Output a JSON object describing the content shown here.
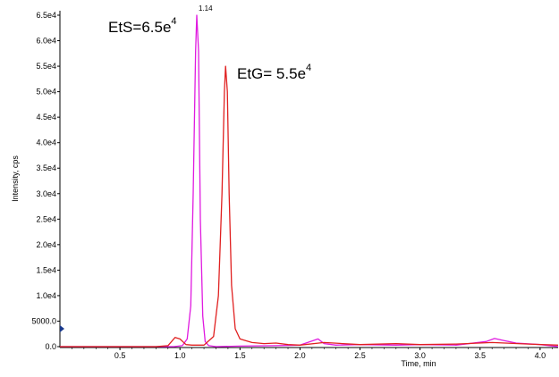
{
  "chart_data": {
    "type": "line",
    "xlabel": "Time, min",
    "ylabel": "Intensity, cps",
    "xlim": [
      0.0,
      4.15
    ],
    "ylim": [
      0,
      65000
    ],
    "x_ticks": [
      {
        "value": 0.5,
        "label": "0.5"
      },
      {
        "value": 1.0,
        "label": "1.0"
      },
      {
        "value": 1.5,
        "label": "1.5"
      },
      {
        "value": 2.0,
        "label": "2.0"
      },
      {
        "value": 2.5,
        "label": "2.5"
      },
      {
        "value": 3.0,
        "label": "3.0"
      },
      {
        "value": 3.5,
        "label": "3.5"
      },
      {
        "value": 4.0,
        "label": "4.0"
      }
    ],
    "y_ticks": [
      {
        "value": 0,
        "label": "0.0"
      },
      {
        "value": 5000,
        "label": "5000.0"
      },
      {
        "value": 10000,
        "label": "1.0e4"
      },
      {
        "value": 15000,
        "label": "1.5e4"
      },
      {
        "value": 20000,
        "label": "2.0e4"
      },
      {
        "value": 25000,
        "label": "2.5e4"
      },
      {
        "value": 30000,
        "label": "3.0e4"
      },
      {
        "value": 35000,
        "label": "3.5e4"
      },
      {
        "value": 40000,
        "label": "4.0e4"
      },
      {
        "value": 45000,
        "label": "4.5e4"
      },
      {
        "value": 50000,
        "label": "5.0e4"
      },
      {
        "value": 55000,
        "label": "5.5e4"
      },
      {
        "value": 60000,
        "label": "6.0e4"
      },
      {
        "value": 65000,
        "label": "6.5e4"
      }
    ],
    "series": [
      {
        "color": "#e01ae0",
        "x": [
          0.0,
          0.8,
          0.95,
          1.02,
          1.06,
          1.09,
          1.11,
          1.13,
          1.14,
          1.155,
          1.17,
          1.19,
          1.21,
          1.24,
          1.3,
          1.5,
          1.8,
          2.0,
          2.15,
          2.2,
          2.3,
          2.5,
          2.8,
          3.0,
          3.3,
          3.55,
          3.62,
          3.7,
          3.8,
          4.0,
          4.15
        ],
        "y": [
          0,
          0,
          0,
          200,
          1500,
          8000,
          30000,
          58000,
          65000,
          58000,
          25000,
          6000,
          1000,
          200,
          0,
          100,
          200,
          300,
          1500,
          600,
          300,
          400,
          300,
          400,
          300,
          1000,
          1600,
          1200,
          700,
          400,
          0
        ]
      },
      {
        "color": "#e02020",
        "x": [
          0.0,
          0.8,
          0.9,
          0.96,
          1.0,
          1.05,
          1.1,
          1.2,
          1.28,
          1.32,
          1.35,
          1.37,
          1.38,
          1.395,
          1.41,
          1.43,
          1.46,
          1.5,
          1.6,
          1.7,
          1.8,
          1.9,
          2.0,
          2.2,
          2.5,
          2.8,
          3.0,
          3.3,
          3.6,
          3.9,
          4.15
        ],
        "y": [
          0,
          0,
          200,
          1800,
          1500,
          400,
          300,
          300,
          2000,
          10000,
          30000,
          50000,
          55000,
          50000,
          30000,
          12000,
          3500,
          1500,
          800,
          600,
          700,
          400,
          300,
          800,
          400,
          600,
          400,
          500,
          800,
          500,
          300
        ]
      }
    ],
    "annotations": [
      {
        "text": "EtS=6.5e",
        "sup": "4"
      },
      {
        "text": "EtG= 5.5e",
        "sup": "4"
      }
    ],
    "peak_labels": [
      {
        "text": "1.14",
        "x": 1.14,
        "y": 65000
      }
    ]
  }
}
